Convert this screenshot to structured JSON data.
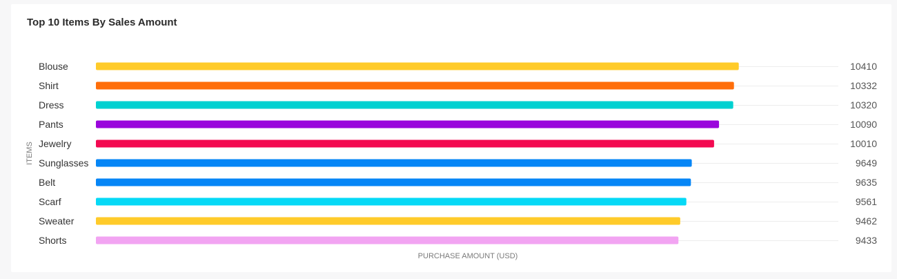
{
  "card": {
    "title": "Top 10 Items By Sales Amount"
  },
  "chart_data": {
    "type": "bar",
    "orientation": "horizontal",
    "title": "Top 10 Items By Sales Amount",
    "xlabel": "PURCHASE AMOUNT (USD)",
    "ylabel": "ITEMS",
    "categories": [
      "Blouse",
      "Shirt",
      "Dress",
      "Pants",
      "Jewelry",
      "Sunglasses",
      "Belt",
      "Scarf",
      "Sweater",
      "Shorts"
    ],
    "values": [
      10410,
      10332,
      10320,
      10090,
      10010,
      9649,
      9635,
      9561,
      9462,
      9433
    ],
    "colors": [
      "#ffcb2a",
      "#ff6e0a",
      "#00d1d1",
      "#9a06dc",
      "#f30a51",
      "#0686f6",
      "#0686f6",
      "#06d9f6",
      "#ffcb2a",
      "#f2a4f2"
    ],
    "xlim": [
      0,
      12000
    ],
    "grid": true,
    "legend": false
  }
}
